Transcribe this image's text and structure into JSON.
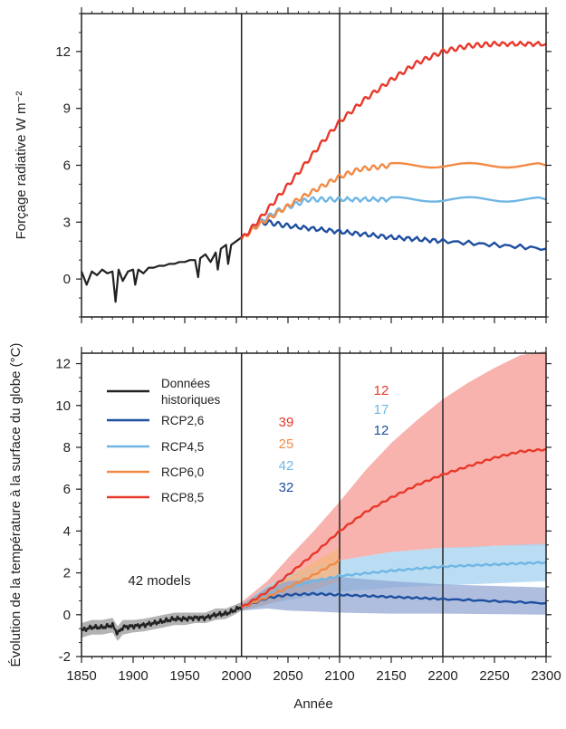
{
  "chart_data": [
    {
      "type": "line",
      "ylabel": "Forçage radiative W m⁻²",
      "xlim": [
        1850,
        2300
      ],
      "ylim": [
        -2,
        14
      ],
      "yticks": [
        0,
        3,
        6,
        9,
        12
      ],
      "xticks": [
        1850,
        1900,
        1950,
        2000,
        2050,
        2100,
        2150,
        2200,
        2250,
        2300
      ],
      "vlines": [
        2005,
        2100,
        2200
      ],
      "historical": {
        "name": "Données historiques",
        "color": "#222222",
        "x": [
          1850,
          1855,
          1860,
          1865,
          1870,
          1875,
          1880,
          1883,
          1886,
          1890,
          1895,
          1900,
          1902,
          1905,
          1910,
          1915,
          1920,
          1925,
          1930,
          1935,
          1940,
          1945,
          1950,
          1955,
          1960,
          1963,
          1965,
          1970,
          1975,
          1980,
          1982,
          1985,
          1990,
          1992,
          1995,
          2000,
          2005
        ],
        "y": [
          0.4,
          -0.3,
          0.4,
          0.2,
          0.5,
          0.3,
          0.4,
          -1.2,
          0.5,
          -0.1,
          0.4,
          0.5,
          -0.3,
          0.5,
          0.3,
          0.6,
          0.6,
          0.7,
          0.7,
          0.8,
          0.8,
          0.9,
          0.9,
          1.0,
          1.0,
          0.1,
          1.1,
          1.3,
          0.9,
          1.4,
          0.5,
          1.6,
          1.8,
          0.8,
          1.8,
          2.0,
          2.2
        ]
      },
      "series": [
        {
          "name": "RCP2,6",
          "color": "#1f4fa0",
          "x": [
            2005,
            2020,
            2030,
            2050,
            2100,
            2150,
            2200,
            2300
          ],
          "y": [
            2.1,
            2.9,
            3.0,
            2.8,
            2.5,
            2.2,
            2.0,
            1.6
          ]
        },
        {
          "name": "RCP4,5",
          "color": "#6fb6e4",
          "x": [
            2005,
            2020,
            2040,
            2060,
            2070,
            2100,
            2150,
            2300
          ],
          "y": [
            2.1,
            2.9,
            3.6,
            4.0,
            4.2,
            4.2,
            4.2,
            4.2
          ]
        },
        {
          "name": "RCP6,0",
          "color": "#f28a45",
          "x": [
            2005,
            2020,
            2040,
            2060,
            2080,
            2100,
            2120,
            2150,
            2300
          ],
          "y": [
            2.1,
            2.8,
            3.5,
            4.2,
            4.8,
            5.4,
            5.8,
            6.0,
            6.0
          ]
        },
        {
          "name": "RCP8,5",
          "color": "#e8382a",
          "x": [
            2005,
            2020,
            2040,
            2060,
            2080,
            2100,
            2125,
            2150,
            2175,
            2200,
            2225,
            2250,
            2300
          ],
          "y": [
            2.1,
            3.0,
            4.3,
            5.6,
            7.0,
            8.3,
            9.5,
            10.5,
            11.4,
            12.0,
            12.3,
            12.4,
            12.4
          ]
        }
      ]
    },
    {
      "type": "line",
      "ylabel": "Évolution de la température à la surface du globe (°C)",
      "xlabel": "Année",
      "xlim": [
        1850,
        2300
      ],
      "ylim": [
        -2,
        12.5
      ],
      "yticks": [
        -2,
        0,
        2,
        4,
        6,
        8,
        10,
        12
      ],
      "xticks": [
        1850,
        1900,
        1950,
        2000,
        2050,
        2100,
        2150,
        2200,
        2250,
        2300
      ],
      "vlines": [
        2005,
        2100,
        2200
      ],
      "annotation": "42 models",
      "counts_2006_2100": [
        {
          "value": "39",
          "color": "#e8382a"
        },
        {
          "value": "25",
          "color": "#f28a45"
        },
        {
          "value": "42",
          "color": "#6fb6e4"
        },
        {
          "value": "32",
          "color": "#1f4fa0"
        }
      ],
      "counts_2101_2300": [
        {
          "value": "12",
          "color": "#e8382a"
        },
        {
          "value": "17",
          "color": "#6fb6e4"
        },
        {
          "value": "12",
          "color": "#1f4fa0"
        }
      ],
      "historical": {
        "name": "Données historiques",
        "color": "#222222",
        "band_color": "#9a9a9a",
        "x": [
          1850,
          1860,
          1870,
          1880,
          1885,
          1890,
          1900,
          1910,
          1920,
          1930,
          1940,
          1950,
          1960,
          1970,
          1980,
          1990,
          2000,
          2005
        ],
        "y": [
          -0.75,
          -0.6,
          -0.6,
          -0.5,
          -0.9,
          -0.6,
          -0.55,
          -0.5,
          -0.4,
          -0.3,
          -0.2,
          -0.2,
          -0.15,
          -0.15,
          0.0,
          0.05,
          0.25,
          0.4
        ],
        "lower": [
          -1.1,
          -0.95,
          -0.95,
          -0.85,
          -1.25,
          -0.95,
          -0.85,
          -0.8,
          -0.7,
          -0.6,
          -0.5,
          -0.5,
          -0.4,
          -0.4,
          -0.25,
          -0.2,
          0.05,
          0.2
        ],
        "upper": [
          -0.4,
          -0.25,
          -0.25,
          -0.15,
          -0.55,
          -0.25,
          -0.25,
          -0.2,
          -0.1,
          0.0,
          0.1,
          0.1,
          0.1,
          0.1,
          0.3,
          0.3,
          0.5,
          0.6
        ]
      },
      "series": [
        {
          "name": "RCP2,6",
          "color": "#1f4fa0",
          "band_color": "#8da2d0",
          "x": [
            2005,
            2030,
            2050,
            2075,
            2100,
            2150,
            2200,
            2300
          ],
          "y": [
            0.35,
            0.8,
            0.95,
            1.0,
            0.95,
            0.85,
            0.75,
            0.55
          ],
          "lower": [
            0.2,
            0.3,
            0.2,
            0.15,
            0.1,
            0.05,
            0.05,
            0.0
          ],
          "upper": [
            0.5,
            1.3,
            1.6,
            1.7,
            1.8,
            1.6,
            1.45,
            1.3
          ]
        },
        {
          "name": "RCP4,5",
          "color": "#6fb6e4",
          "band_color": "#a9d5f0",
          "x": [
            2005,
            2030,
            2050,
            2075,
            2100,
            2150,
            2200,
            2250,
            2300
          ],
          "y": [
            0.35,
            0.9,
            1.3,
            1.6,
            1.85,
            2.1,
            2.3,
            2.4,
            2.5
          ],
          "lower": [
            0.2,
            0.5,
            0.7,
            0.9,
            1.1,
            1.3,
            1.4,
            1.5,
            1.6
          ],
          "upper": [
            0.5,
            1.4,
            1.9,
            2.3,
            2.6,
            3.0,
            3.2,
            3.3,
            3.4
          ]
        },
        {
          "name": "RCP6,0",
          "color": "#f28a45",
          "band_color": "#f6b47f",
          "x": [
            2005,
            2030,
            2050,
            2075,
            2100
          ],
          "y": [
            0.35,
            0.85,
            1.3,
            1.9,
            2.6
          ],
          "lower": [
            0.2,
            0.5,
            0.8,
            1.2,
            1.6
          ],
          "upper": [
            0.5,
            1.3,
            1.8,
            2.5,
            3.2
          ]
        },
        {
          "name": "RCP8,5",
          "color": "#e8382a",
          "band_color": "#f7a09a",
          "x": [
            2005,
            2030,
            2050,
            2075,
            2100,
            2125,
            2150,
            2175,
            2200,
            2225,
            2250,
            2275,
            2300
          ],
          "y": [
            0.35,
            1.1,
            1.9,
            2.9,
            4.0,
            4.9,
            5.6,
            6.2,
            6.7,
            7.1,
            7.5,
            7.8,
            7.9
          ],
          "lower": [
            0.2,
            0.7,
            1.3,
            2.0,
            2.6,
            2.8,
            3.0,
            3.1,
            3.2,
            3.2,
            3.3,
            3.3,
            3.3
          ],
          "upper": [
            0.6,
            1.6,
            2.7,
            4.0,
            5.4,
            6.9,
            8.2,
            9.3,
            10.3,
            11.1,
            11.8,
            12.4,
            12.6
          ]
        }
      ]
    }
  ],
  "legend": [
    {
      "label": "Données historiques",
      "color": "#222222"
    },
    {
      "label": "RCP2,6",
      "color": "#1f4fa0"
    },
    {
      "label": "RCP4,5",
      "color": "#6fb6e4"
    },
    {
      "label": "RCP6,0",
      "color": "#f28a45"
    },
    {
      "label": "RCP8,5",
      "color": "#e8382a"
    }
  ]
}
